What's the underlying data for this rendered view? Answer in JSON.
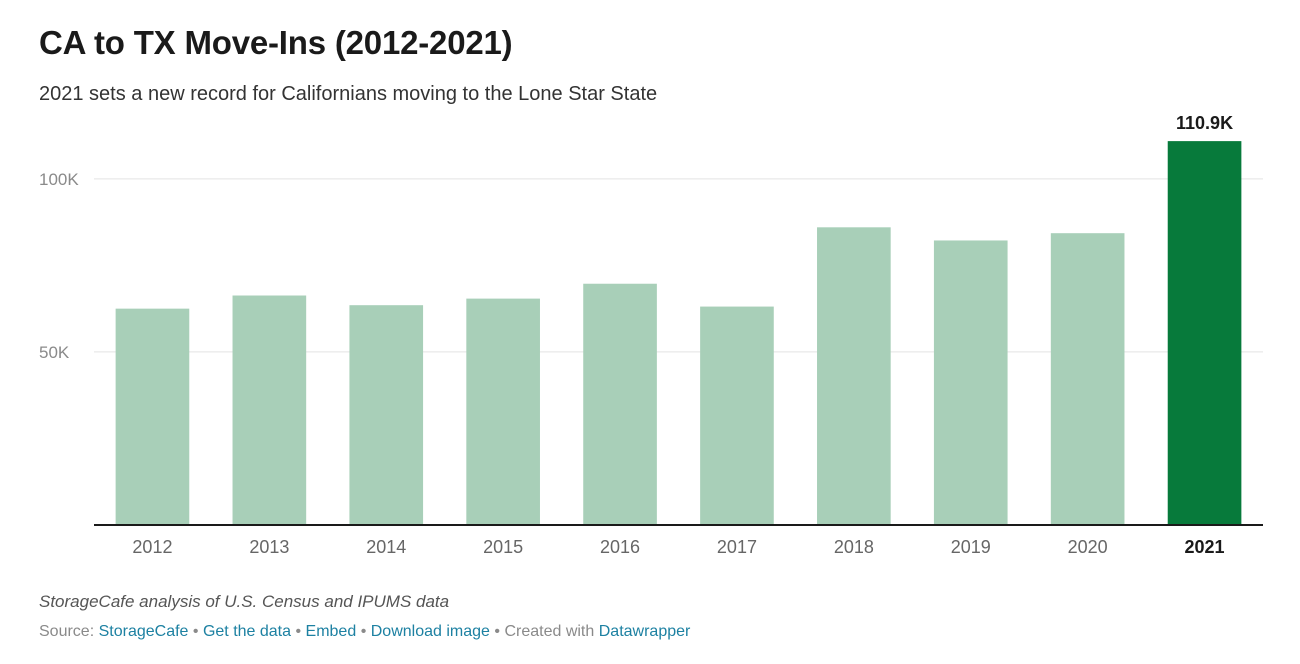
{
  "chart_data": {
    "type": "bar",
    "title": "CA to TX Move-Ins (2012-2021)",
    "subtitle": "2021 sets a new record for Californians moving to the Lone Star State",
    "categories": [
      "2012",
      "2013",
      "2014",
      "2015",
      "2016",
      "2017",
      "2018",
      "2019",
      "2020",
      "2021"
    ],
    "values": [
      62500,
      66300,
      63500,
      65400,
      69700,
      63100,
      86000,
      82200,
      84300,
      110900
    ],
    "highlight": {
      "category": "2021",
      "label": "110.9K"
    },
    "y_ticks": [
      {
        "value": 100000,
        "label": "100K"
      },
      {
        "value": 50000,
        "label": "50K"
      }
    ],
    "ylim": [
      0,
      117000
    ],
    "xlabel": "",
    "ylabel": "",
    "grid": true,
    "legend": "none",
    "colors": {
      "bar": "#a8cfb8",
      "highlight_bar": "#077a3b",
      "grid": "#e3e3e3",
      "axis": "#1a1a1a"
    }
  },
  "notes": "StorageCafe analysis of U.S. Census and IPUMS data",
  "footer": {
    "source_prefix": "Source:",
    "source_link": "StorageCafe",
    "separator": "•",
    "get_data": "Get the data",
    "embed": "Embed",
    "download": "Download image",
    "created_with": "Created with",
    "datawrapper": "Datawrapper"
  }
}
